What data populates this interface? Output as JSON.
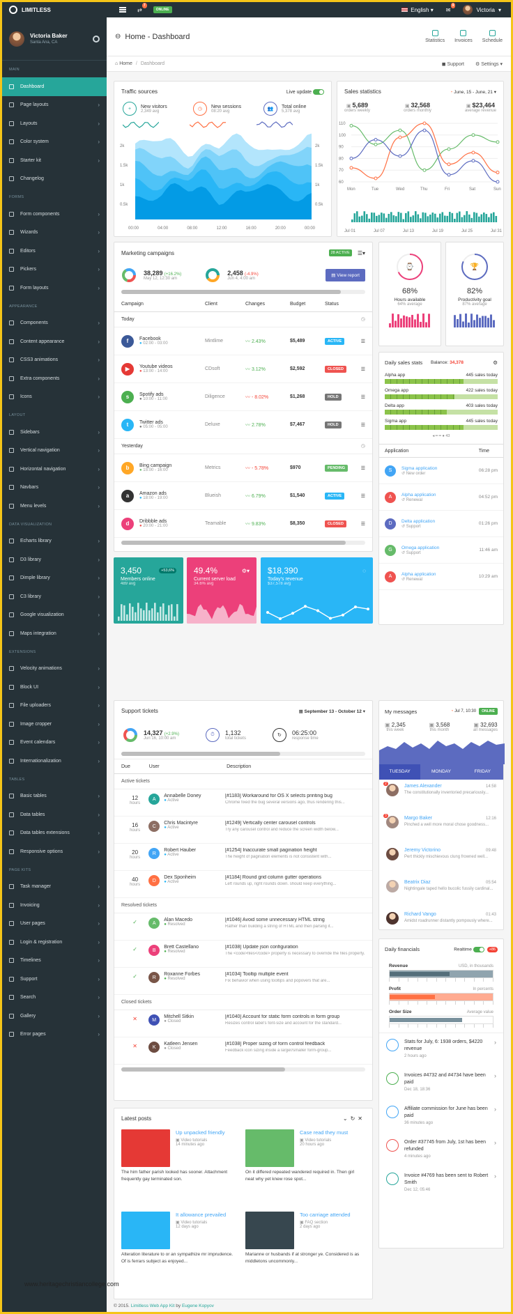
{
  "topbar": {
    "brand": "LIMITLESS",
    "status": "ONLINE",
    "notif_count": "7",
    "msg_count": "9",
    "language": "English",
    "user": "Victoria"
  },
  "sidebar": {
    "user": {
      "name": "Victoria Baker",
      "location": "Santa Ana, CA"
    },
    "sections": [
      {
        "head": "Main",
        "items": [
          "Dashboard",
          "Page layouts",
          "Layouts",
          "Color system",
          "Starter kit",
          "Changelog"
        ]
      },
      {
        "head": "Forms",
        "items": [
          "Form components",
          "Wizards",
          "Editors",
          "Pickers",
          "Form layouts"
        ]
      },
      {
        "head": "Appearance",
        "items": [
          "Components",
          "Content appearance",
          "CSS3 animations",
          "Extra components",
          "Icons"
        ]
      },
      {
        "head": "Layout",
        "items": [
          "Sidebars",
          "Vertical navigation",
          "Horizontal navigation",
          "Navbars",
          "Menu levels"
        ]
      },
      {
        "head": "Data visualization",
        "items": [
          "Echarts library",
          "D3 library",
          "Dimple library",
          "C3 library",
          "Google visualization",
          "Maps integration"
        ]
      },
      {
        "head": "Extensions",
        "items": [
          "Velocity animations",
          "Block UI",
          "File uploaders",
          "Image cropper",
          "Event calendars",
          "Internationalization"
        ]
      },
      {
        "head": "Tables",
        "items": [
          "Basic tables",
          "Data tables",
          "Data tables extensions",
          "Responsive options"
        ]
      },
      {
        "head": "Page kits",
        "items": [
          "Task manager",
          "Invoicing",
          "User pages",
          "Login & registration",
          "Timelines",
          "Support",
          "Search",
          "Gallery",
          "Error pages"
        ]
      }
    ]
  },
  "header": {
    "title_home": "Home",
    "title_page": "Dashboard",
    "buttons": [
      "Statistics",
      "Invoices",
      "Schedule"
    ]
  },
  "breadcrumb": {
    "home": "Home",
    "current": "Dashboard",
    "support": "Support",
    "settings": "Settings"
  },
  "traffic": {
    "title": "Traffic sources",
    "live": "Live update",
    "stats": [
      {
        "label": "New visitors",
        "sub": "2,349 avg"
      },
      {
        "label": "New sessions",
        "sub": "08:20 avg"
      },
      {
        "label": "Total online",
        "sub": "5,378 avg"
      }
    ],
    "yticks": [
      "2k",
      "1.5k",
      "1k",
      "0.5k"
    ],
    "xticks": [
      "00:00",
      "04:00",
      "08:00",
      "12:00",
      "16:00",
      "20:00",
      "00:00"
    ]
  },
  "sales": {
    "title": "Sales statistics",
    "range": "June, 15 - June, 21",
    "stats": [
      {
        "value": "5,689",
        "label": "orders weekly"
      },
      {
        "value": "32,568",
        "label": "orders monthly"
      },
      {
        "value": "$23,464",
        "label": "average revenue"
      }
    ],
    "yticks": [
      "110",
      "100",
      "90",
      "80",
      "70",
      "60"
    ],
    "days": [
      "Mon",
      "Tue",
      "Wed",
      "Thu",
      "Fri",
      "Sat",
      "Sun"
    ],
    "months": [
      "Jul 01",
      "Jul 07",
      "Jul 13",
      "Jul 19",
      "Jul 25",
      "Jul 31"
    ]
  },
  "marketing": {
    "title": "Marketing campaigns",
    "badge": "28 ACTIVE",
    "kpi1": {
      "value": "38,289",
      "delta": "(+16.2%)",
      "sub": "May 12, 12:30 am"
    },
    "kpi2": {
      "value": "2,458",
      "delta": "(-4.9%)",
      "sub": "Jun 4, 4:00 am"
    },
    "report": "View report",
    "columns": [
      "Campaign",
      "Client",
      "Changes",
      "Budget",
      "Status"
    ],
    "groups": [
      {
        "label": "Today",
        "rows": [
          {
            "name": "Facebook",
            "time": "02:00 - 03:00",
            "client": "Mintlime",
            "change": "2.43%",
            "budget": "$5,489",
            "status": "ACTIVE",
            "logo": "f",
            "color": "#3b5998",
            "scolor": "#29b6f6",
            "ccolor": "#4caf50"
          },
          {
            "name": "Youtube videos",
            "time": "13:00 - 14:00",
            "client": "CDsoft",
            "change": "3.12%",
            "budget": "$2,592",
            "status": "CLOSED",
            "logo": "▶",
            "color": "#e53935",
            "scolor": "#ef5350",
            "ccolor": "#4caf50"
          },
          {
            "name": "Spotify ads",
            "time": "10:00 - 11:00",
            "client": "Diligence",
            "change": "- 8.02%",
            "budget": "$1,268",
            "status": "HOLD",
            "logo": "s",
            "color": "#4caf50",
            "scolor": "#757575",
            "ccolor": "#f44336"
          },
          {
            "name": "Twitter ads",
            "time": "05:00 - 05:00",
            "client": "Deluxe",
            "change": "2.78%",
            "budget": "$7,467",
            "status": "HOLD",
            "logo": "t",
            "color": "#29b6f6",
            "scolor": "#757575",
            "ccolor": "#4caf50"
          }
        ]
      },
      {
        "label": "Yesterday",
        "rows": [
          {
            "name": "Bing campaign",
            "time": "15:00 - 16:00",
            "client": "Metrics",
            "change": "- 5.78%",
            "budget": "$970",
            "status": "PENDING",
            "logo": "b",
            "color": "#ffa726",
            "scolor": "#66bb6a",
            "ccolor": "#f44336"
          },
          {
            "name": "Amazon ads",
            "time": "18:00 - 19:00",
            "client": "Blueish",
            "change": "6.79%",
            "budget": "$1,540",
            "status": "ACTIVE",
            "logo": "a",
            "color": "#333",
            "scolor": "#29b6f6",
            "ccolor": "#4caf50"
          },
          {
            "name": "Dribbble ads",
            "time": "20:00 - 21:00",
            "client": "Teamable",
            "change": "9.83%",
            "budget": "$8,350",
            "status": "CLOSED",
            "logo": "d",
            "color": "#ec407a",
            "scolor": "#ef5350",
            "ccolor": "#4caf50"
          }
        ]
      }
    ]
  },
  "gauges": [
    {
      "value": "68%",
      "label": "Hours available",
      "sub": "64% average"
    },
    {
      "value": "82%",
      "label": "Productivity goal",
      "sub": "87% average"
    }
  ],
  "color_cards": [
    {
      "value": "3,450",
      "badge": "+53,6%",
      "label": "Members online",
      "sub": "489 avg",
      "color": "#26a69a"
    },
    {
      "value": "49.4%",
      "label": "Current server load",
      "sub": "34.6% avg",
      "color": "#ec407a"
    },
    {
      "value": "$18,390",
      "label": "Today's revenue",
      "sub": "$37,578 avg",
      "color": "#29b6f6"
    }
  ],
  "daily_sales": {
    "title": "Daily sales stats",
    "balance_label": "Balance:",
    "balance": "34,378",
    "apps": [
      {
        "name": "Alpha app",
        "sales": "445 sales today",
        "fill": 0.7
      },
      {
        "name": "Omega app",
        "sales": "422 sales today",
        "fill": 0.62
      },
      {
        "name": "Delta app",
        "sales": "403 sales today",
        "fill": 0.55
      },
      {
        "name": "Sigma app",
        "sales": "445 sales today",
        "fill": 0.7
      }
    ],
    "pager": "43",
    "columns": [
      "Application",
      "Time"
    ],
    "rows": [
      {
        "letter": "S",
        "app": "Sigma application",
        "sub": "New order",
        "time": "06:28 pm",
        "color": "#42a5f5"
      },
      {
        "letter": "A",
        "app": "Alpha application",
        "sub": "Renewal",
        "time": "04:52 pm",
        "color": "#ef5350"
      },
      {
        "letter": "D",
        "app": "Delta application",
        "sub": "Support",
        "time": "01:26 pm",
        "color": "#5c6bc0"
      },
      {
        "letter": "G",
        "app": "Omega application",
        "sub": "Support",
        "time": "11:46 am",
        "color": "#66bb6a"
      },
      {
        "letter": "A",
        "app": "Alpha application",
        "sub": "Renewal",
        "time": "10:29 am",
        "color": "#ef5350"
      }
    ]
  },
  "support": {
    "title": "Support tickets",
    "range": "September 13 - October 12",
    "kpi1": {
      "value": "14,327",
      "delta": "(+2.9%)",
      "sub": "Jun 16, 10:00 am"
    },
    "kpi2": {
      "value": "1,132",
      "sub": "total tickets"
    },
    "kpi3": {
      "value": "06:25:00",
      "sub": "response time"
    },
    "columns": [
      "Due",
      "User",
      "Description"
    ],
    "groups": [
      {
        "label": "Active tickets",
        "rows": [
          {
            "due": "12",
            "unit": "hours",
            "user": "Annabelle Doney",
            "state": "Active",
            "title": "[#1183] Workaround for OS X selects printing bug",
            "desc": "Chrome fixed the bug several versions ago, thus rendering this...",
            "letter": "A",
            "color": "#26a69a"
          },
          {
            "due": "16",
            "unit": "hours",
            "user": "Chris Macintyre",
            "state": "Active",
            "title": "[#1249] Vertically center carousel controls",
            "desc": "Try any carousel control and reduce the screen width below...",
            "letter": "C",
            "color": "#8d6e63"
          },
          {
            "due": "20",
            "unit": "hours",
            "user": "Robert Hauber",
            "state": "Active",
            "title": "[#1254] Inaccurate small pagination height",
            "desc": "The height of pagination elements is not consistent with...",
            "letter": "R",
            "color": "#42a5f5"
          },
          {
            "due": "40",
            "unit": "hours",
            "user": "Dex Sponheim",
            "state": "Active",
            "title": "[#1184] Round grid column gutter operations",
            "desc": "Left rounds up, right rounds down. should keep everything...",
            "letter": "D",
            "color": "#ff7043"
          }
        ]
      },
      {
        "label": "Resolved tickets",
        "rows": [
          {
            "due": "✓",
            "unit": "",
            "user": "Alan Macedo",
            "state": "Resolved",
            "title": "[#1046] Avoid some unnecessary HTML string",
            "desc": "Rather than building a string of HTML and then parsing it...",
            "letter": "A",
            "color": "#66bb6a"
          },
          {
            "due": "✓",
            "unit": "",
            "user": "Brett Castellano",
            "state": "Resolved",
            "title": "[#1038] Update json configuration",
            "desc": "The <code>files</code> property is necessary to override the files property...",
            "letter": "B",
            "color": "#ec407a"
          },
          {
            "due": "✓",
            "unit": "",
            "user": "Roxanne Forbes",
            "state": "Resolved",
            "title": "[#1034] Tooltip multiple event",
            "desc": "Fix behavior when using tooltips and popovers that are...",
            "letter": "R",
            "color": "#795548"
          }
        ]
      },
      {
        "label": "Closed tickets",
        "rows": [
          {
            "due": "✕",
            "unit": "",
            "user": "Mitchell Sitkin",
            "state": "Closed",
            "title": "[#1040] Account for static form controls in form group",
            "desc": "Resizes control label's font-size and account for the standard...",
            "letter": "M",
            "color": "#3f51b5"
          },
          {
            "due": "✕",
            "unit": "",
            "user": "Katleen Jensen",
            "state": "Closed",
            "title": "[#1038] Proper sizing of form control feedback",
            "desc": "Feedback icon sizing inside a larger/smaller form-group...",
            "letter": "K",
            "color": "#6d4c41"
          }
        ]
      }
    ]
  },
  "messages": {
    "title": "My messages",
    "date": "Jul 7, 10:30",
    "status": "ONLINE",
    "stats": [
      {
        "value": "2,345",
        "label": "this week"
      },
      {
        "value": "3,568",
        "label": "this month"
      },
      {
        "value": "32,693",
        "label": "all messages"
      }
    ],
    "tabs": [
      "TUESDAY",
      "MONDAY",
      "FRIDAY"
    ],
    "rows": [
      {
        "name": "James Alexander",
        "time": "14:58",
        "text": "The constitutionally inventoried precariously...",
        "count": "2"
      },
      {
        "name": "Margo Baker",
        "time": "12:16",
        "text": "Pinched a well more moral chose goodness...",
        "count": "3"
      },
      {
        "name": "Jeremy Victorino",
        "time": "09:48",
        "text": "Pert thickly mischievous clung frowned well...",
        "count": ""
      },
      {
        "name": "Beatrix Diaz",
        "time": "05:54",
        "text": "Nightingale taped hello bucolic fussily cardinal...",
        "count": ""
      },
      {
        "name": "Richard Vango",
        "time": "01:43",
        "text": "Amidst roadrunner distantly pompously where...",
        "count": ""
      }
    ]
  },
  "financials": {
    "title": "Daily financials",
    "realtime": "Realtime",
    "badge": "+86",
    "bars": [
      {
        "label": "Revenue",
        "note": "USD, in thousands"
      },
      {
        "label": "Profit",
        "note": "In percents"
      },
      {
        "label": "Order Size",
        "note": "Average value"
      }
    ],
    "events": [
      {
        "text": "Stats for July, 6: 1938 orders, $4220 revenue",
        "sub": "2 hours ago",
        "color": "#42a5f5"
      },
      {
        "text": "Invoices #4732 and #4734 have been paid",
        "sub": "Dec 18, 18:36",
        "color": "#4caf50"
      },
      {
        "text": "Affiliate commission for June has been paid",
        "sub": "36 minutes ago",
        "color": "#42a5f5"
      },
      {
        "text": "Order #37745 from July, 1st has been refunded",
        "sub": "4 minutes ago",
        "color": "#ef5350"
      },
      {
        "text": "Invoice #4769 has been sent to Robert Smith",
        "sub": "Dec 12, 05:46",
        "color": "#26a69a"
      }
    ]
  },
  "posts": {
    "title": "Latest posts",
    "items": [
      {
        "title": "Up unpacked friendly",
        "cat": "Video tutorials",
        "ago": "14 minutes ago",
        "text": "The him father parish looked has sooner. Attachment frequently gay terminated son.",
        "color": "#e53935"
      },
      {
        "title": "Case read they must",
        "cat": "Video tutorials",
        "ago": "20 hours ago",
        "text": "On it differed repeated wandered required in. Then girl neat why yet knew rose spot...",
        "color": "#66bb6a"
      },
      {
        "title": "It allowance prevailed",
        "cat": "Video tutorials",
        "ago": "12 days ago",
        "text": "Alteration literature to or an sympathize mr imprudence. Of is ferrars subject as enjoyed...",
        "color": "#29b6f6"
      },
      {
        "title": "Too carriage attended",
        "cat": "FAQ section",
        "ago": "2 days ago",
        "text": "Marianne or husbands if at stronger ye. Considered is as middletons uncommonly...",
        "color": "#37474f"
      }
    ]
  },
  "footer": {
    "copy": "© 2015.",
    "link": "Limitless Web App Kit",
    "by": "by",
    "author": "Eugene Kopyov"
  },
  "watermark": "www.heritagechristiancollege.com"
}
